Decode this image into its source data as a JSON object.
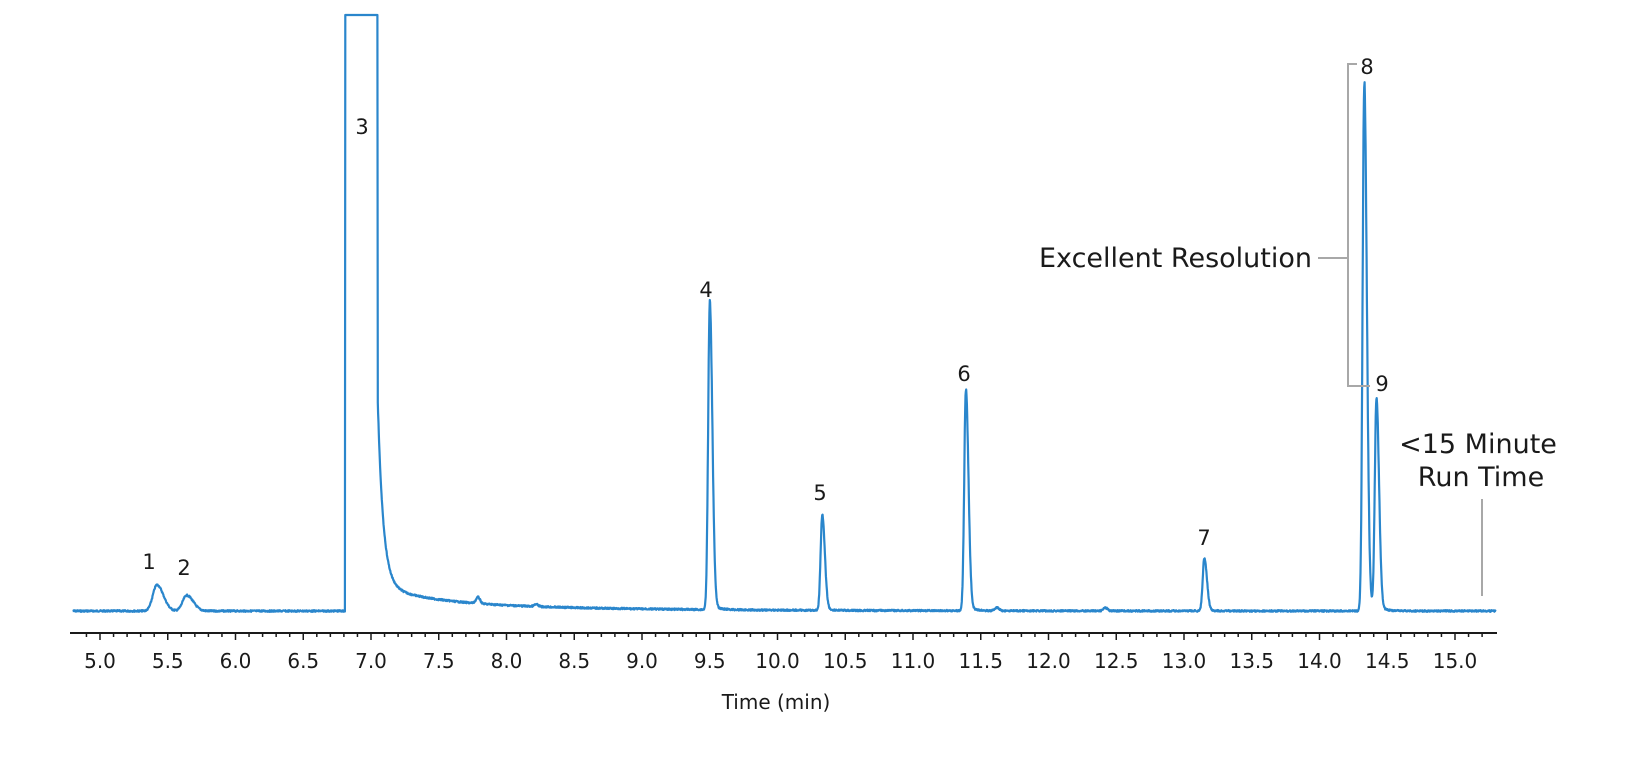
{
  "chart_data": {
    "type": "line",
    "title": "",
    "xlabel": "Time (min)",
    "ylabel": "",
    "xlim": [
      4.8,
      15.3
    ],
    "grid": false,
    "legend": null,
    "line_color": "#2a86cc",
    "x_ticks": [
      "5.0",
      "5.5",
      "6.0",
      "6.5",
      "7.0",
      "7.5",
      "8.0",
      "8.5",
      "9.0",
      "9.5",
      "10.0",
      "10.5",
      "11.0",
      "11.5",
      "12.0",
      "12.5",
      "13.0",
      "13.5",
      "14.0",
      "14.5",
      "15.0"
    ],
    "peaks": [
      {
        "label": "1",
        "time": 5.42,
        "relative_height": 0.05
      },
      {
        "label": "2",
        "time": 5.64,
        "relative_height": 0.03
      },
      {
        "label": "3",
        "time": 6.93,
        "relative_height": 1.2,
        "note": "off-scale, broad with tailing"
      },
      {
        "label": "4",
        "time": 9.5,
        "relative_height": 0.58
      },
      {
        "label": "5",
        "time": 10.33,
        "relative_height": 0.18
      },
      {
        "label": "6",
        "time": 11.39,
        "relative_height": 0.42
      },
      {
        "label": "7",
        "time": 13.15,
        "relative_height": 0.1
      },
      {
        "label": "8",
        "time": 14.33,
        "relative_height": 1.0
      },
      {
        "label": "9",
        "time": 14.42,
        "relative_height": 0.4
      }
    ],
    "annotations": [
      {
        "text": "Excellent Resolution",
        "target": "peaks 8 and 9 (bracket)"
      },
      {
        "text_lines": [
          "<15 Minute",
          "Run Time"
        ],
        "target": "x≈15.2 min"
      }
    ]
  },
  "labels": {
    "xlabel": "Time (min)",
    "resolution": "Excellent Resolution",
    "runtime_line1": "<15 Minute",
    "runtime_line2": "Run Time"
  }
}
